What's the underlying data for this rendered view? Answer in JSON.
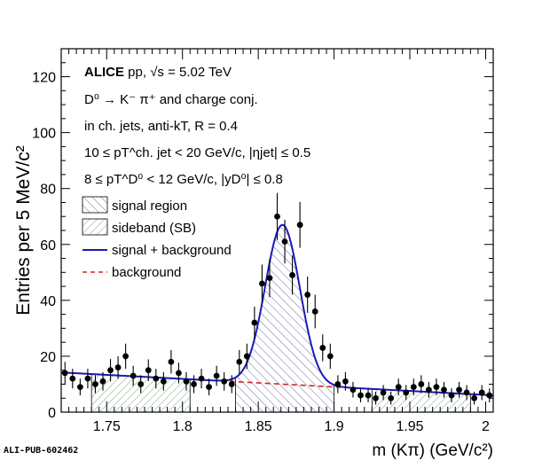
{
  "chart_data": {
    "type": "histogram",
    "xlabel": "m (Kπ) (GeV/c²)",
    "ylabel": "Entries per 5 MeV/c²",
    "xlim": [
      1.72,
      2.005
    ],
    "ylim": [
      0,
      130
    ],
    "x_ticks": [
      "1.75",
      "1.8",
      "1.85",
      "1.9",
      "1.95",
      "2"
    ],
    "y_ticks": [
      "0",
      "20",
      "40",
      "60",
      "80",
      "100",
      "120"
    ],
    "annotations": {
      "experiment": "ALICE",
      "system": "pp, √s = 5.02 TeV",
      "decay": "D⁰ → K⁻ π⁺ and charge conj.",
      "jets": "in ch. jets, anti-kT, R = 0.4",
      "jet_pt": "10 ≤ pT^ch. jet < 20 GeV/c, |ηjet| ≤ 0.5",
      "d_pt": "8 ≤ pT^D⁰ < 12 GeV/c, |yD⁰| ≤ 0.8"
    },
    "legend": {
      "position": "left-middle",
      "entries": [
        "signal region",
        "sideband (SB)",
        "signal + background",
        "background"
      ]
    },
    "signal_region": [
      1.835,
      1.9
    ],
    "sideband_regions": [
      [
        1.74,
        1.805
      ],
      [
        1.925,
        1.99
      ]
    ],
    "fit": {
      "background_level_at_min": 14.2,
      "background_level_at_max": 6.0,
      "peak_mean": 1.866,
      "peak_sigma": 0.0115,
      "peak_height": 57.0
    },
    "points": {
      "x": [
        1.7225,
        1.7275,
        1.7325,
        1.7375,
        1.7425,
        1.7475,
        1.7525,
        1.7575,
        1.7625,
        1.7675,
        1.7725,
        1.7775,
        1.7825,
        1.7875,
        1.7925,
        1.7975,
        1.8025,
        1.8075,
        1.8125,
        1.8175,
        1.8225,
        1.8275,
        1.8325,
        1.8375,
        1.8425,
        1.8475,
        1.8525,
        1.8575,
        1.8625,
        1.8675,
        1.8725,
        1.8775,
        1.8825,
        1.8875,
        1.8925,
        1.8975,
        1.9025,
        1.9075,
        1.9125,
        1.9175,
        1.9225,
        1.9275,
        1.9325,
        1.9375,
        1.9425,
        1.9475,
        1.9525,
        1.9575,
        1.9625,
        1.9675,
        1.9725,
        1.9775,
        1.9825,
        1.9875,
        1.9925,
        1.9975,
        2.0025
      ],
      "y": [
        14,
        12,
        9,
        12,
        10,
        11,
        15,
        16,
        20,
        13,
        10,
        15,
        12,
        11,
        18,
        14,
        11,
        10,
        12,
        9,
        13,
        11,
        10,
        18,
        20,
        32,
        46,
        48,
        70,
        61,
        49,
        67,
        42,
        36,
        23,
        20,
        10,
        11,
        8,
        6,
        6,
        5,
        7,
        5,
        9,
        7,
        9,
        10,
        8,
        9,
        8,
        6,
        8,
        7,
        5,
        7,
        6
      ],
      "err": [
        4,
        3.5,
        3,
        3.5,
        3.2,
        3.3,
        4,
        4,
        4.5,
        3.6,
        3.2,
        3.9,
        3.5,
        3.3,
        4.2,
        3.7,
        3.3,
        3.2,
        3.5,
        3,
        3.6,
        3.3,
        3.2,
        4.2,
        4.5,
        5.7,
        6.8,
        6.9,
        8.4,
        7.8,
        7,
        8.2,
        6.5,
        6,
        4.8,
        4.5,
        3.2,
        3.3,
        2.8,
        2.5,
        2.5,
        2.3,
        2.7,
        2.3,
        3,
        2.7,
        3,
        3.2,
        2.8,
        3,
        2.8,
        2.5,
        2.8,
        2.7,
        2.3,
        2.7,
        2.5
      ]
    },
    "colors": {
      "fit": "#1a1ab8",
      "background": "#d42020",
      "signal_hatch": "#4a4a8c",
      "sideband_hatch": "#3c7a3c"
    }
  },
  "footer": {
    "publication_id": "ALI-PUB-602462"
  }
}
